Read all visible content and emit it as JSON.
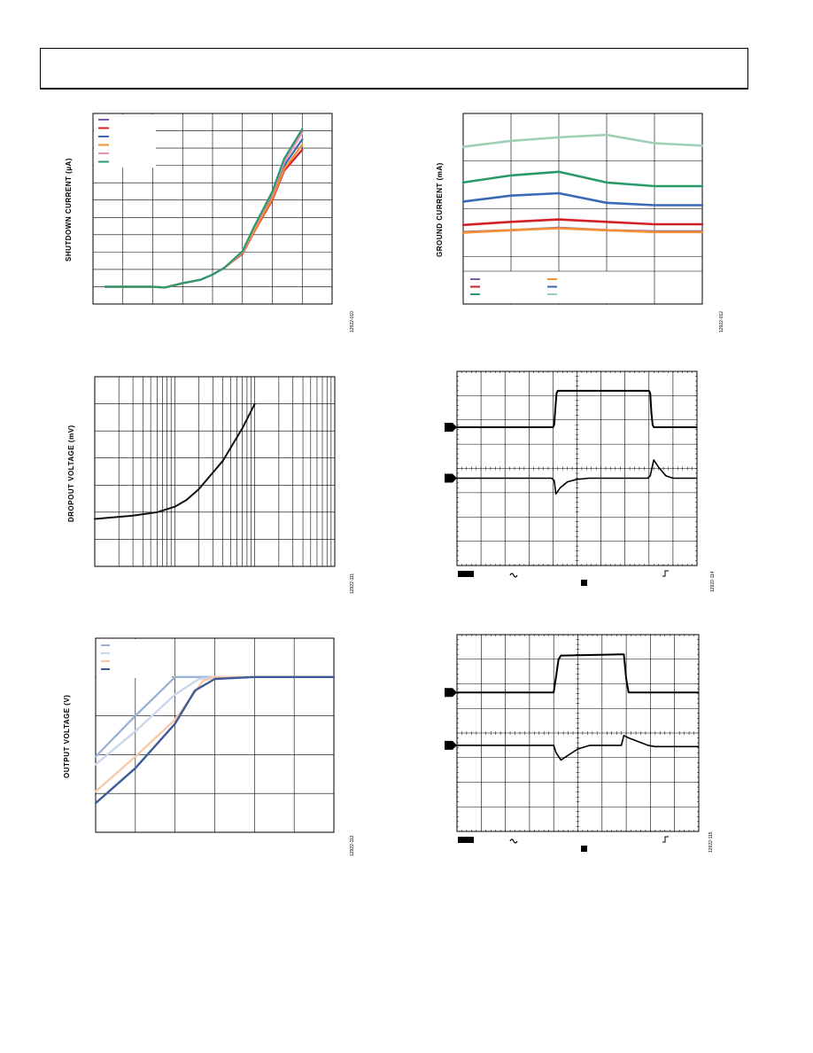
{
  "page": {
    "header_title": ""
  },
  "chart_data": [
    {
      "id": "shutdown",
      "type": "line",
      "title": "",
      "ylabel": "SHUTDOWN CURRENT (µA)",
      "fig_id": "12922-010",
      "xlim": [
        -50,
        150
      ],
      "ylim": [
        0,
        22
      ],
      "x_ticks": [
        -50,
        -25,
        0,
        25,
        50,
        75,
        100,
        125,
        150
      ],
      "y_ticks": [
        0,
        2,
        4,
        6,
        8,
        10,
        12,
        14,
        16,
        18,
        20,
        22
      ],
      "legend_position": "top-left",
      "series": [
        {
          "color": "#7b5ea7",
          "x": [
            -40,
            -25,
            0,
            10,
            25,
            40,
            50,
            60,
            75,
            85,
            100,
            110,
            125
          ],
          "y": [
            2.0,
            2.0,
            2.0,
            1.9,
            2.4,
            2.8,
            3.4,
            4.2,
            6.0,
            8.8,
            12.8,
            16.4,
            20.0
          ]
        },
        {
          "color": "#d32027",
          "x": [
            -40,
            -25,
            0,
            10,
            25,
            40,
            50,
            60,
            75,
            85,
            100,
            110,
            125
          ],
          "y": [
            2.0,
            2.0,
            2.0,
            1.9,
            2.4,
            2.8,
            3.4,
            4.2,
            5.8,
            8.4,
            12.0,
            15.4,
            17.8
          ]
        },
        {
          "color": "#3a6ab5",
          "x": [
            -40,
            -25,
            0,
            10,
            25,
            40,
            50,
            60,
            75,
            85,
            100,
            110,
            125
          ],
          "y": [
            2.0,
            2.0,
            2.0,
            1.9,
            2.4,
            2.8,
            3.4,
            4.2,
            6.0,
            8.8,
            12.6,
            16.0,
            19.0
          ]
        },
        {
          "color": "#f39035",
          "x": [
            -40,
            -25,
            0,
            10,
            25,
            40,
            50,
            60,
            75,
            85,
            100,
            110,
            125
          ],
          "y": [
            2.0,
            2.0,
            2.0,
            1.9,
            2.4,
            2.8,
            3.4,
            4.2,
            5.9,
            8.5,
            12.2,
            15.6,
            18.4
          ]
        },
        {
          "color": "#f28fb9",
          "x": [
            -40,
            -25,
            0,
            10,
            25,
            40,
            50,
            60,
            75,
            85,
            100,
            110,
            125
          ],
          "y": [
            2.0,
            2.0,
            2.0,
            1.9,
            2.4,
            2.8,
            3.4,
            4.2,
            6.0,
            8.9,
            12.8,
            16.4,
            19.8
          ]
        },
        {
          "color": "#2b9a6b",
          "x": [
            -40,
            -25,
            0,
            10,
            25,
            40,
            50,
            60,
            75,
            85,
            100,
            110,
            125
          ],
          "y": [
            2.0,
            2.0,
            2.0,
            1.9,
            2.4,
            2.8,
            3.4,
            4.2,
            6.1,
            9.0,
            13.0,
            16.8,
            20.2
          ]
        }
      ]
    },
    {
      "id": "ground",
      "type": "line",
      "title": "",
      "ylabel": "GROUND CURRENT (mA)",
      "fig_id": "12922-012",
      "xlim": [
        0,
        5
      ],
      "ylim": [
        0,
        8
      ],
      "x_ticks": [
        0,
        1,
        2,
        3,
        4,
        5
      ],
      "y_ticks": [
        0,
        2,
        4,
        6,
        8
      ],
      "legend_position": "bottom-left",
      "series": [
        {
          "color": "#7b5ea7",
          "x": [
            0,
            1,
            2,
            3,
            4,
            5
          ],
          "y": [
            3.02,
            3.1,
            3.2,
            3.1,
            3.05,
            3.05
          ]
        },
        {
          "color": "#d32027",
          "x": [
            0,
            1,
            2,
            3,
            4,
            5
          ],
          "y": [
            3.32,
            3.45,
            3.55,
            3.45,
            3.35,
            3.35
          ]
        },
        {
          "color": "#2b9a6b",
          "x": [
            0,
            1,
            2,
            3,
            4,
            5
          ],
          "y": [
            5.1,
            5.4,
            5.55,
            5.1,
            4.95,
            4.95
          ]
        },
        {
          "color": "#f39035",
          "x": [
            0,
            1,
            2,
            3,
            4,
            5
          ],
          "y": [
            3.0,
            3.1,
            3.18,
            3.1,
            3.02,
            3.02
          ]
        },
        {
          "color": "#3a6ab5",
          "x": [
            0,
            1,
            2,
            3,
            4,
            5
          ],
          "y": [
            4.3,
            4.55,
            4.65,
            4.25,
            4.15,
            4.15
          ]
        },
        {
          "color": "#9fcfb5",
          "x": [
            0,
            1,
            2,
            3,
            4,
            5
          ],
          "y": [
            6.6,
            6.85,
            7.0,
            7.1,
            6.75,
            6.65
          ]
        }
      ]
    },
    {
      "id": "dropout",
      "type": "line",
      "title": "",
      "ylabel": "DROPOUT VOLTAGE (mV)",
      "fig_id": "12922-111",
      "x_scale": "log",
      "xlim": [
        1,
        1000
      ],
      "ylim": [
        0,
        140
      ],
      "y_ticks": [
        0,
        20,
        40,
        60,
        80,
        100,
        120,
        140
      ],
      "series": [
        {
          "color": "#111111",
          "x": [
            1,
            3,
            6,
            10,
            14,
            20,
            40,
            70,
            100
          ],
          "y": [
            35,
            37.5,
            40,
            44,
            49,
            57,
            78,
            102,
            120
          ]
        }
      ]
    },
    {
      "id": "scope1",
      "type": "line",
      "title": "",
      "fig_id": "12922-114",
      "xlim": [
        0,
        10
      ],
      "ylim": [
        0,
        8
      ],
      "traces": [
        {
          "name": "ch1",
          "color": "#000000",
          "x": [
            0,
            4.0,
            4.05,
            4.1,
            4.15,
            4.2,
            8.0,
            8.05,
            8.1,
            8.15,
            8.2,
            10
          ],
          "y": [
            5.7,
            5.7,
            5.8,
            6.5,
            7.1,
            7.2,
            7.2,
            7.1,
            6.3,
            5.8,
            5.7,
            5.7
          ]
        },
        {
          "name": "ch2",
          "color": "#000000",
          "x": [
            0,
            3.95,
            4.05,
            4.12,
            4.3,
            4.6,
            5.0,
            5.5,
            6.0,
            7.95,
            8.05,
            8.2,
            8.4,
            8.7,
            9.0,
            10
          ],
          "y": [
            3.6,
            3.6,
            3.5,
            2.95,
            3.2,
            3.45,
            3.55,
            3.6,
            3.6,
            3.6,
            3.7,
            4.35,
            4.05,
            3.7,
            3.6,
            3.6
          ]
        }
      ],
      "markers": [
        {
          "channel": "ch1",
          "level": 5.7
        },
        {
          "channel": "ch2",
          "level": 3.6
        }
      ]
    },
    {
      "id": "outvolt",
      "type": "line",
      "title": "",
      "ylabel": "OUTPUT VOLTAGE (V)",
      "fig_id": "12922-112",
      "xlim": [
        0,
        6
      ],
      "ylim": [
        0,
        5
      ],
      "x_ticks": [
        0,
        1,
        2,
        3,
        4,
        5,
        6
      ],
      "y_ticks": [
        0,
        1,
        2,
        3,
        4,
        5
      ],
      "legend_position": "top-left",
      "series": [
        {
          "color": "#9bb2d4",
          "x": [
            0,
            1,
            2,
            2.5,
            3.0,
            6
          ],
          "y": [
            1.95,
            3.0,
            4.0,
            4.0,
            4.0,
            4.0
          ]
        },
        {
          "color": "#c9d7ea",
          "x": [
            0,
            1,
            2,
            2.6,
            3.0,
            6
          ],
          "y": [
            1.75,
            2.6,
            3.55,
            3.95,
            4.0,
            4.0
          ]
        },
        {
          "color": "#f7c9a6",
          "x": [
            0,
            1,
            2,
            2.7,
            3.0,
            6
          ],
          "y": [
            1.05,
            1.95,
            2.9,
            3.9,
            4.0,
            4.0
          ]
        },
        {
          "color": "#3d5a99",
          "x": [
            0,
            1,
            2,
            2.5,
            3.0,
            4,
            6
          ],
          "y": [
            0.75,
            1.65,
            2.8,
            3.65,
            3.95,
            4.0,
            4.0
          ]
        }
      ]
    },
    {
      "id": "scope2",
      "type": "line",
      "title": "",
      "fig_id": "12922-115",
      "xlim": [
        0,
        10
      ],
      "ylim": [
        0,
        8
      ],
      "traces": [
        {
          "name": "ch1",
          "color": "#000000",
          "x": [
            0,
            4.0,
            4.1,
            4.2,
            4.3,
            6.8,
            6.9,
            7.0,
            7.1,
            10
          ],
          "y": [
            5.65,
            5.65,
            6.3,
            7.0,
            7.15,
            7.2,
            7.2,
            6.2,
            5.65,
            5.65
          ]
        },
        {
          "name": "ch2",
          "color": "#000000",
          "x": [
            0,
            4.0,
            4.1,
            4.3,
            4.6,
            5.0,
            5.5,
            6.8,
            6.9,
            7.1,
            7.5,
            7.9,
            8.2,
            10
          ],
          "y": [
            3.5,
            3.5,
            3.2,
            2.9,
            3.1,
            3.35,
            3.5,
            3.5,
            3.9,
            3.8,
            3.65,
            3.5,
            3.45,
            3.45
          ]
        }
      ],
      "markers": [
        {
          "channel": "ch1",
          "level": 5.65
        },
        {
          "channel": "ch2",
          "level": 3.5
        }
      ]
    }
  ]
}
